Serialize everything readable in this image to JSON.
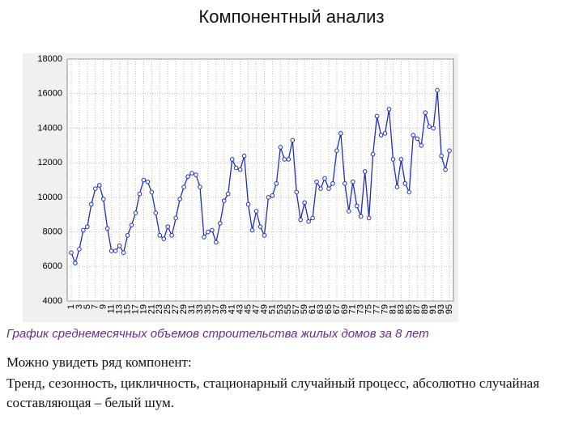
{
  "header": {
    "title": "Компонентный анализ"
  },
  "chart_data": {
    "type": "line",
    "x": [
      1,
      2,
      3,
      4,
      5,
      6,
      7,
      8,
      9,
      10,
      11,
      12,
      13,
      14,
      15,
      16,
      17,
      18,
      19,
      20,
      21,
      22,
      23,
      24,
      25,
      26,
      27,
      28,
      29,
      30,
      31,
      32,
      33,
      34,
      35,
      36,
      37,
      38,
      39,
      40,
      41,
      42,
      43,
      44,
      45,
      46,
      47,
      48,
      49,
      50,
      51,
      52,
      53,
      54,
      55,
      56,
      57,
      58,
      59,
      60,
      61,
      62,
      63,
      64,
      65,
      66,
      67,
      68,
      69,
      70,
      71,
      72,
      73,
      74,
      75,
      76,
      77,
      78,
      79,
      80,
      81,
      82,
      83,
      84,
      85,
      86,
      87,
      88,
      89,
      90,
      91,
      92,
      93,
      94,
      95
    ],
    "series": [
      {
        "color": "#1f2fbf",
        "values": [
          6800,
          6200,
          7000,
          8100,
          8300,
          9600,
          10500,
          10700,
          9900,
          8200,
          6900,
          6900,
          7200,
          6800,
          7800,
          8400,
          9100,
          10200,
          11000,
          10900,
          10300,
          9100,
          7800,
          7600,
          8300,
          7800,
          8800,
          9900,
          10600,
          11200,
          11400,
          11300,
          10600,
          7700,
          8000,
          8100,
          7400,
          8500,
          9800,
          10200,
          12200,
          11700,
          11600,
          12400,
          9600,
          8100,
          9200,
          8300,
          7800,
          10000,
          10100,
          10800,
          12900,
          12200,
          12200,
          13300,
          10300,
          8700,
          9700,
          8600,
          8800,
          10900,
          10500,
          11100,
          10500,
          10800,
          12700,
          13700,
          10800,
          9200,
          10900,
          9500,
          8900,
          11500,
          8800,
          12500,
          14700,
          13600,
          13700,
          15100,
          12200,
          10600,
          12200,
          10800,
          10300,
          13600,
          13400,
          13000,
          14900,
          14100,
          14000,
          16200,
          12400,
          11600,
          12700
        ]
      }
    ],
    "xlim": [
      0,
      96
    ],
    "xticks": [
      1,
      3,
      5,
      7,
      9,
      11,
      13,
      15,
      17,
      19,
      21,
      23,
      25,
      27,
      29,
      31,
      33,
      35,
      37,
      39,
      41,
      43,
      45,
      47,
      49,
      51,
      53,
      55,
      57,
      59,
      61,
      63,
      65,
      67,
      69,
      71,
      73,
      75,
      77,
      79,
      81,
      83,
      85,
      87,
      89,
      91,
      93,
      95
    ],
    "ylim": [
      4000,
      18000
    ],
    "yticks": [
      4000,
      6000,
      8000,
      10000,
      12000,
      14000,
      16000,
      18000
    ],
    "grid": true
  },
  "caption": "График среднемесячных объемов строительства жилых домов за 8 лет",
  "body": [
    "Можно увидеть ряд компонент:",
    "Тренд, сезонность, цикличность, стационарный случайный процесс, абсолютно случайная составляющая – белый шум."
  ]
}
